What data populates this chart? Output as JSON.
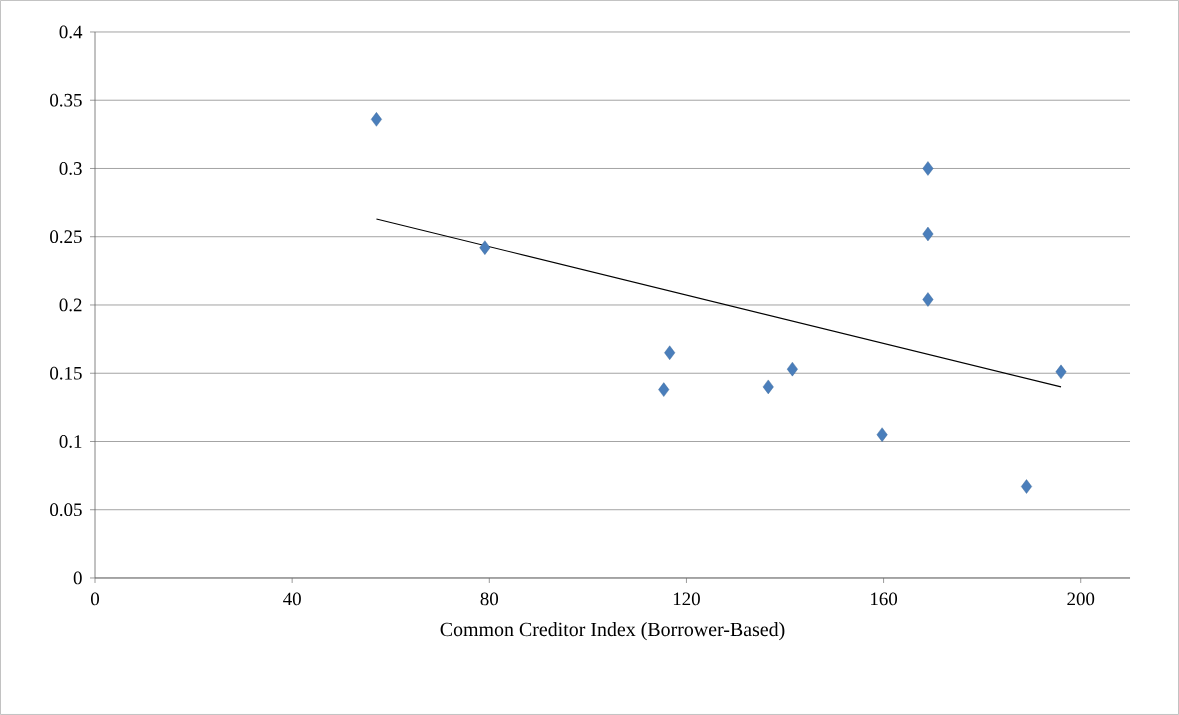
{
  "chart_data": {
    "type": "scatter",
    "xlabel": "Common Creditor Index (Borrower-Based)",
    "xlim": [
      0,
      210
    ],
    "xticks": [
      0,
      40,
      80,
      120,
      160,
      200
    ],
    "ylim": [
      0,
      0.4
    ],
    "yticks": [
      0,
      0.05,
      0.1,
      0.15,
      0.2,
      0.25,
      0.3,
      0.35,
      0.4
    ],
    "grid": "y",
    "marker": "diamond",
    "series": [
      {
        "color": "#4a7ebb",
        "x": [
          57.1,
          79.1,
          115.4,
          116.6,
          136.6,
          141.5,
          159.7,
          169,
          169,
          169,
          189,
          196
        ],
        "values": [
          0.336,
          0.242,
          0.138,
          0.165,
          0.14,
          0.153,
          0.105,
          0.3,
          0.252,
          0.204,
          0.067,
          0.151
        ]
      },
      {
        "type": "line",
        "color": "#000000",
        "marker": "none",
        "x": [
          57.1,
          196
        ],
        "values": [
          0.263,
          0.14
        ]
      }
    ]
  }
}
